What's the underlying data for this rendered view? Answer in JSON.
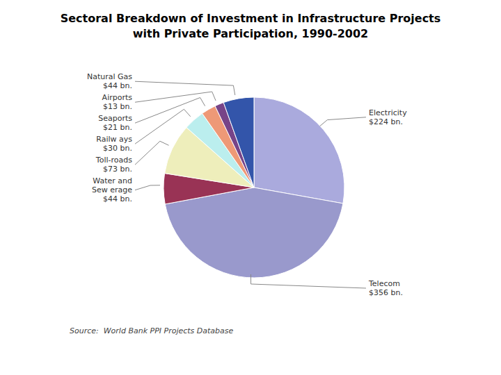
{
  "chart_data": {
    "type": "pie",
    "title": "Sectoral Breakdown of Investment in Infrastructure Projects",
    "subtitle": "with Private Participation, 1990-2002",
    "categories": [
      "Electricity",
      "Telecom",
      "Water and\nSew erage",
      "Toll-roads",
      "Railw ays",
      "Seaports",
      "Airports",
      "Natural Gas"
    ],
    "values": [
      224,
      356,
      44,
      73,
      30,
      21,
      13,
      44
    ],
    "value_labels": [
      "$224 bn.",
      "$356 bn.",
      "$44 bn.",
      "$73 bn.",
      "$30 bn.",
      "$21 bn.",
      "$13 bn.",
      "$44 bn."
    ],
    "colors": [
      "#AAAADD",
      "#9999CC",
      "#993355",
      "#EEEEBB",
      "#BBEEEE",
      "#EE9977",
      "#774488",
      "#3355AA"
    ],
    "data_labels": true,
    "annotations": [
      "Source:  World Bank PPI Projects Database"
    ]
  }
}
